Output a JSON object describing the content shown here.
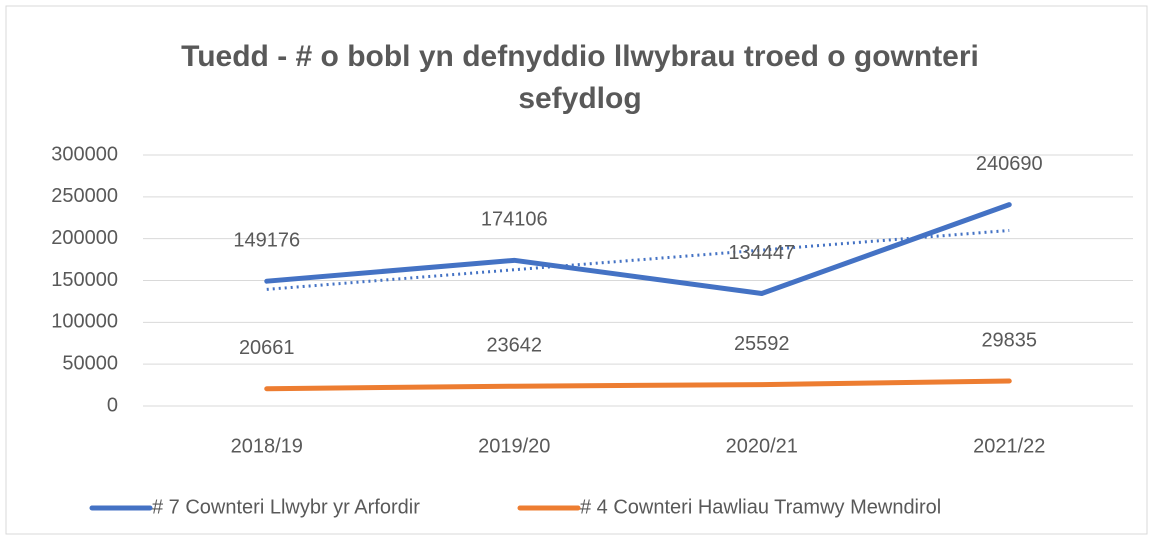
{
  "chart_data": {
    "type": "line",
    "title": "Tuedd - # o bobl yn defnyddio llwybrau troed o gownteri sefydlog",
    "categories": [
      "2018/19",
      "2019/20",
      "2020/21",
      "2021/22"
    ],
    "series": [
      {
        "name": "# 7 Cownteri Llwybr yr Arfordir",
        "color": "#4472c4",
        "values": [
          149176,
          174106,
          134447,
          240690
        ],
        "trendline": true
      },
      {
        "name": "# 4 Cownteri Hawliau Tramwy Mewndirol",
        "color": "#ed7d31",
        "values": [
          20661,
          23642,
          25592,
          29835
        ]
      }
    ],
    "ylim": [
      0,
      300000
    ],
    "yticks": [
      0,
      50000,
      100000,
      150000,
      200000,
      250000,
      300000
    ],
    "grid": true,
    "legend": "bottom"
  }
}
